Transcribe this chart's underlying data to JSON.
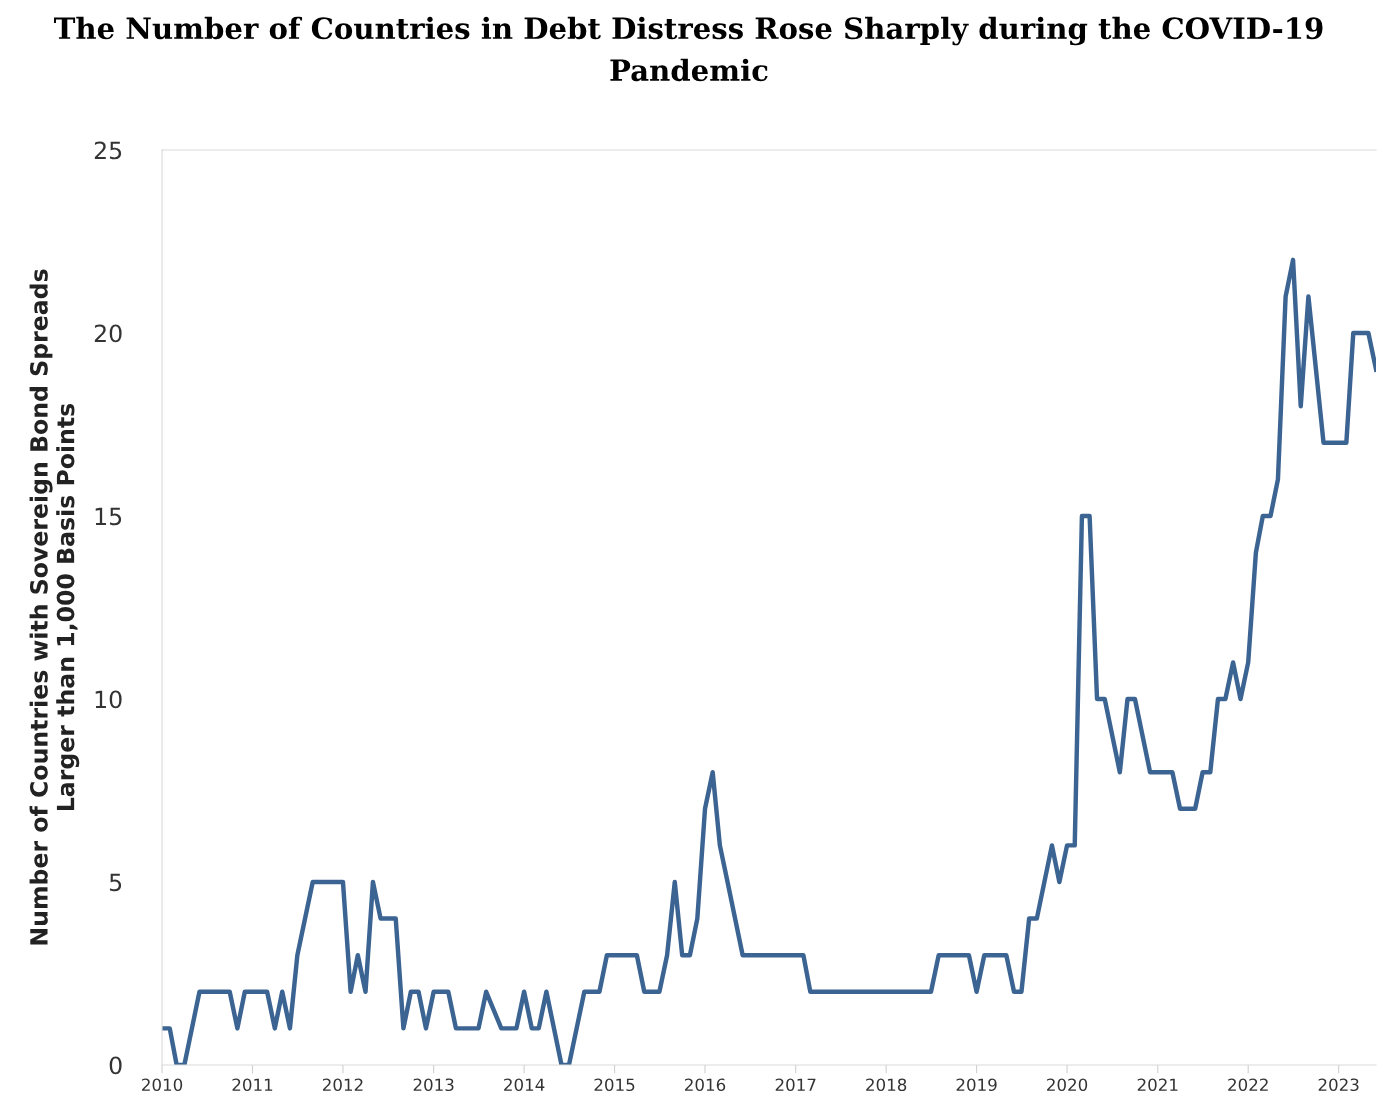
{
  "chart_data": {
    "type": "line",
    "title": "The Number of Countries in Debt Distress Rose Sharply during the COVID-19 Pandemic",
    "ylabel": "Number of Countries with Sovereign Bond Spreads\nLarger than 1,000 Basis Points",
    "x": [
      "2010-01",
      "2010-02",
      "2010-03",
      "2010-04",
      "2010-06",
      "2010-10",
      "2010-11",
      "2010-12",
      "2011-03",
      "2011-04",
      "2011-05",
      "2011-06",
      "2011-07",
      "2011-09",
      "2012-01",
      "2012-02",
      "2012-03",
      "2012-04",
      "2012-05",
      "2012-06",
      "2012-08",
      "2012-09",
      "2012-10",
      "2012-11",
      "2012-12",
      "2013-01",
      "2013-03",
      "2013-04",
      "2013-07",
      "2013-08",
      "2013-10",
      "2013-12",
      "2014-01",
      "2014-02",
      "2014-03",
      "2014-04",
      "2014-06",
      "2014-07",
      "2014-09",
      "2014-11",
      "2014-12",
      "2015-04",
      "2015-05",
      "2015-07",
      "2015-08",
      "2015-09",
      "2015-10",
      "2015-11",
      "2015-12",
      "2016-01",
      "2016-02",
      "2016-03",
      "2016-04",
      "2016-06",
      "2017-02",
      "2017-03",
      "2018-07",
      "2018-08",
      "2018-12",
      "2019-01",
      "2019-02",
      "2019-05",
      "2019-06",
      "2019-07",
      "2019-08",
      "2019-09",
      "2019-11",
      "2019-12",
      "2020-01",
      "2020-02",
      "2020-03",
      "2020-04",
      "2020-05",
      "2020-06",
      "2020-08",
      "2020-09",
      "2020-10",
      "2020-12",
      "2021-03",
      "2021-04",
      "2021-06",
      "2021-07",
      "2021-08",
      "2021-09",
      "2021-10",
      "2021-11",
      "2021-12",
      "2022-01",
      "2022-02",
      "2022-03",
      "2022-04",
      "2022-05",
      "2022-06",
      "2022-07",
      "2022-08",
      "2022-09",
      "2022-11",
      "2023-02",
      "2023-03",
      "2023-05",
      "2023-06"
    ],
    "series": [
      {
        "color": "#3c6493",
        "values": [
          1,
          1,
          0,
          0,
          2,
          2,
          1,
          2,
          2,
          1,
          2,
          1,
          3,
          5,
          5,
          2,
          3,
          2,
          5,
          4,
          4,
          1,
          2,
          2,
          1,
          2,
          2,
          1,
          1,
          2,
          1,
          1,
          2,
          1,
          1,
          2,
          0,
          0,
          2,
          2,
          3,
          3,
          2,
          2,
          3,
          5,
          3,
          3,
          4,
          7,
          8,
          6,
          5,
          3,
          3,
          2,
          2,
          3,
          3,
          2,
          3,
          3,
          2,
          2,
          4,
          4,
          6,
          5,
          6,
          6,
          15,
          15,
          10,
          10,
          8,
          10,
          10,
          8,
          8,
          7,
          7,
          8,
          8,
          10,
          10,
          11,
          10,
          11,
          14,
          15,
          15,
          16,
          21,
          22,
          18,
          21,
          17,
          17,
          20,
          20,
          19
        ]
      }
    ],
    "xlim": [
      "2010-01",
      "2023-06"
    ],
    "xticks": [
      "2010",
      "2011",
      "2012",
      "2013",
      "2014",
      "2015",
      "2016",
      "2017",
      "2018",
      "2019",
      "2020",
      "2021",
      "2022",
      "2023"
    ],
    "ylim": [
      0,
      25
    ],
    "yticks": [
      0,
      5,
      10,
      15,
      20,
      25
    ],
    "grid": false,
    "legend": false,
    "marker": "none",
    "line_style": "solid"
  }
}
